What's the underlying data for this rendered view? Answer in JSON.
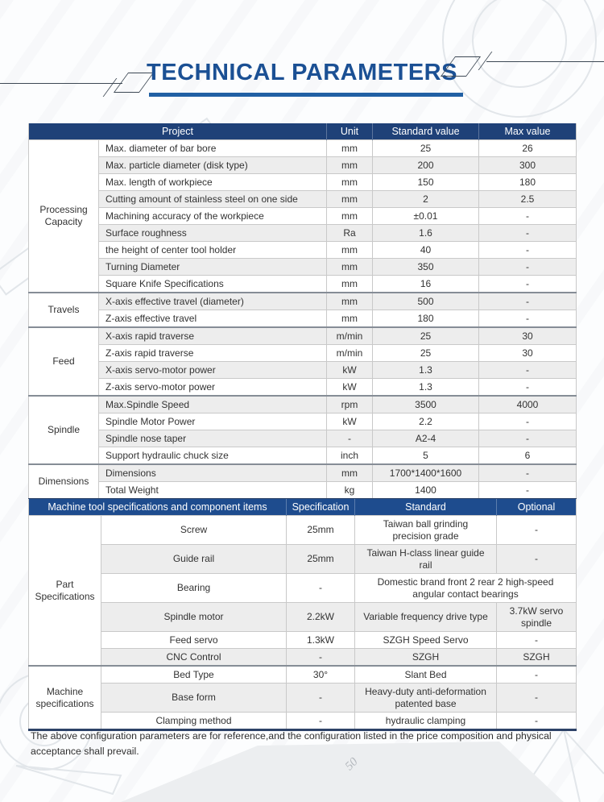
{
  "page": {
    "title": "TECHNICAL PARAMETERS",
    "footer_note": "The above configuration parameters are for reference,and the configuration listed in the price composition and physical acceptance shall prevail."
  },
  "background": {
    "sketch_number": "50"
  },
  "colors": {
    "table1_header_bg": "#1f4178",
    "table2_header_bg": "#1e4c8e",
    "title_blue": "#1b5094",
    "underline_blue": "#2160a4",
    "row_stripe": "#ededed",
    "grid_line": "#c9c9c9",
    "section_line": "#868d96",
    "body_text": "#333333"
  },
  "table1": {
    "headers": [
      "Project",
      "Unit",
      "Standard value",
      "Max value"
    ],
    "sections": [
      {
        "group": "Processing Capacity",
        "rows": [
          [
            "Max. diameter of bar bore",
            "mm",
            "25",
            "26"
          ],
          [
            "Max. particle diameter (disk type)",
            "mm",
            "200",
            "300"
          ],
          [
            "Max. length of workpiece",
            "mm",
            "150",
            "180"
          ],
          [
            "Cutting amount of stainless steel on one side",
            "mm",
            "2",
            "2.5"
          ],
          [
            "Machining accuracy of the workpiece",
            "mm",
            "±0.01",
            "-"
          ],
          [
            "Surface roughness",
            "Ra",
            "1.6",
            "-"
          ],
          [
            "the height of center tool holder",
            "mm",
            "40",
            "-"
          ],
          [
            "Turning Diameter",
            "mm",
            "350",
            "-"
          ],
          [
            "Square Knife Specifications",
            "mm",
            "16",
            "-"
          ]
        ]
      },
      {
        "group": "Travels",
        "rows": [
          [
            "X-axis effective travel (diameter)",
            "mm",
            "500",
            "-"
          ],
          [
            "Z-axis effective travel",
            "mm",
            "180",
            "-"
          ]
        ]
      },
      {
        "group": "Feed",
        "rows": [
          [
            "X-axis rapid traverse",
            "m/min",
            "25",
            "30"
          ],
          [
            "Z-axis rapid traverse",
            "m/min",
            "25",
            "30"
          ],
          [
            "X-axis servo-motor power",
            "kW",
            "1.3",
            "-"
          ],
          [
            "Z-axis servo-motor power",
            "kW",
            "1.3",
            "-"
          ]
        ]
      },
      {
        "group": "Spindle",
        "rows": [
          [
            "Max.Spindle Speed",
            "rpm",
            "3500",
            "4000"
          ],
          [
            "Spindle Motor Power",
            "kW",
            "2.2",
            "-"
          ],
          [
            "Spindle nose taper",
            "-",
            "A2-4",
            "-"
          ],
          [
            "Support hydraulic chuck size",
            "inch",
            "5",
            "6"
          ]
        ]
      },
      {
        "group": "Dimensions",
        "rows": [
          [
            "Dimensions",
            "mm",
            "1700*1400*1600",
            "-"
          ],
          [
            "Total Weight",
            "kg",
            "1400",
            "-"
          ]
        ]
      }
    ]
  },
  "table2": {
    "headers": [
      "Machine tool specifications and component items",
      "Specification",
      "Standard",
      "Optional"
    ],
    "sections": [
      {
        "group": "Part Specifications",
        "rows": [
          [
            "Screw",
            "25mm",
            "Taiwan ball grinding precision grade",
            "-"
          ],
          [
            "Guide rail",
            "25mm",
            "Taiwan H-class linear guide rail",
            "-"
          ],
          [
            "Bearing",
            "-",
            "Domestic brand front 2 rear 2 high-speed angular contact bearings",
            null
          ],
          [
            "Spindle motor",
            "2.2kW",
            "Variable frequency drive type",
            "3.7kW servo spindle"
          ],
          [
            "Feed servo",
            "1.3kW",
            "SZGH Speed Servo",
            "-"
          ],
          [
            "CNC Control",
            "-",
            "SZGH",
            "SZGH"
          ]
        ]
      },
      {
        "group": "Machine specifications",
        "rows": [
          [
            "Bed Type",
            "30°",
            "Slant Bed",
            "-"
          ],
          [
            "Base form",
            "-",
            "Heavy-duty anti-deformation patented base",
            "-"
          ],
          [
            "Clamping method",
            "-",
            "hydraulic clamping",
            "-"
          ]
        ]
      }
    ]
  }
}
